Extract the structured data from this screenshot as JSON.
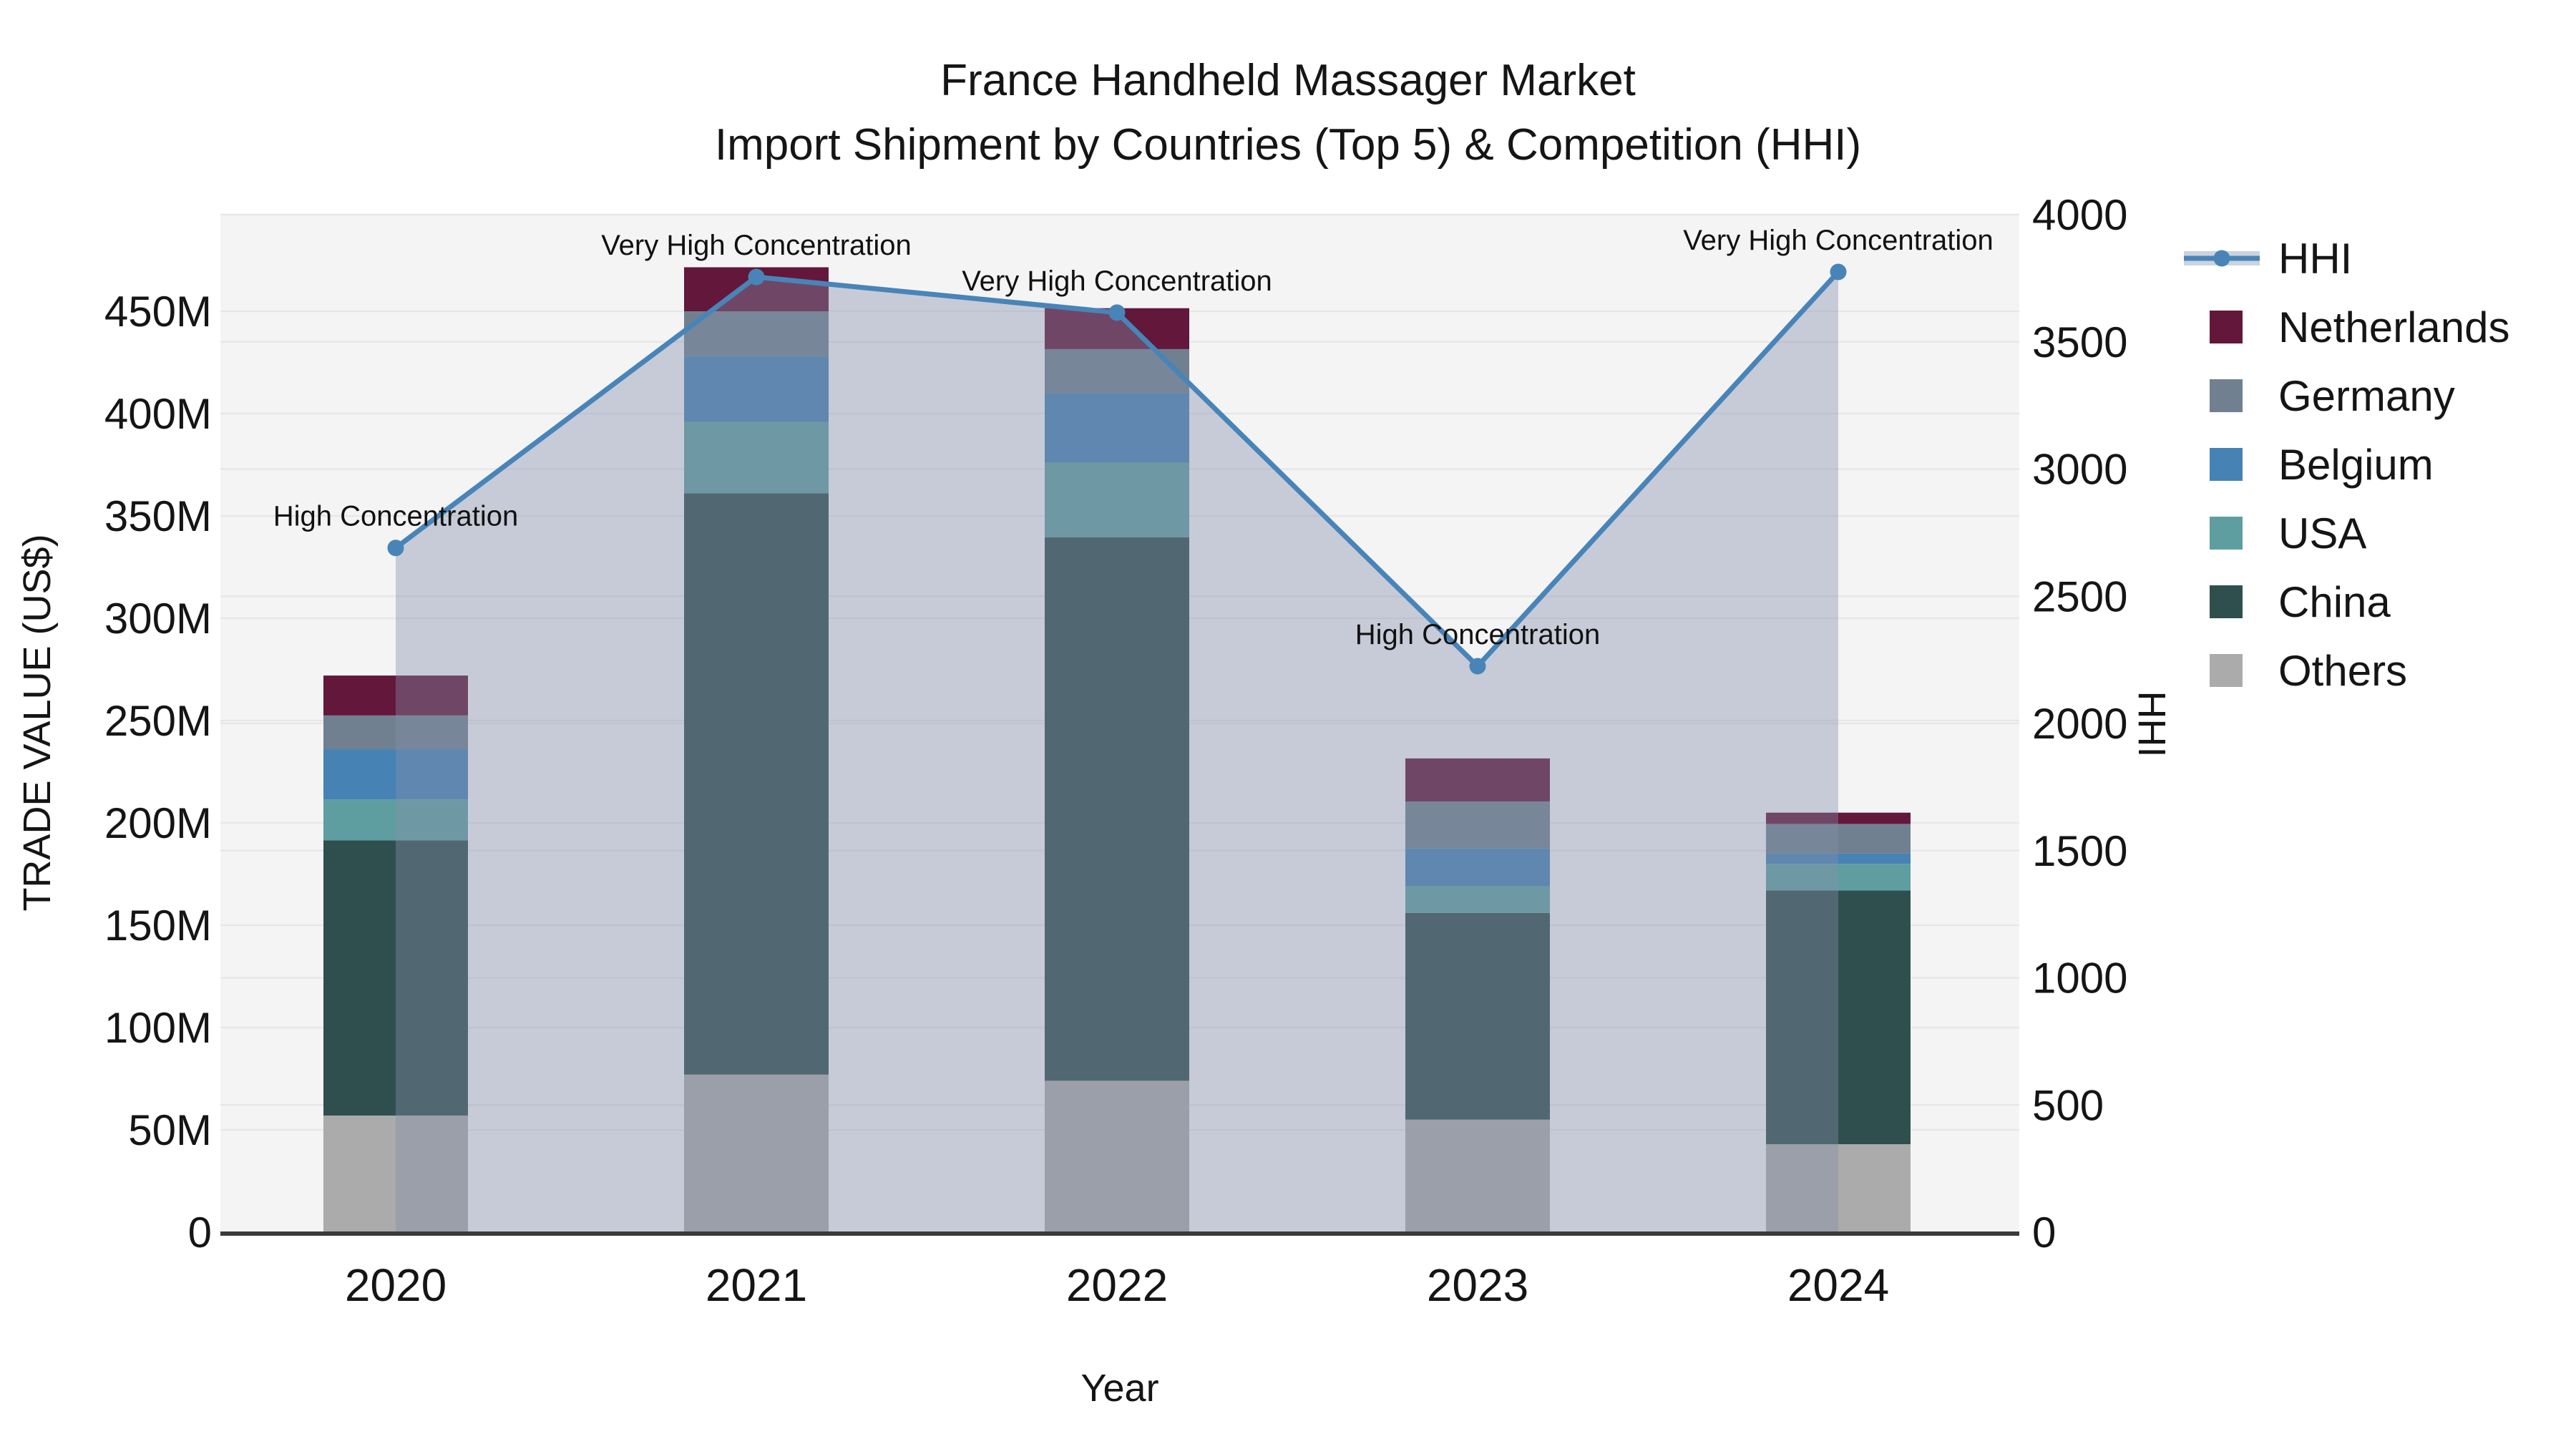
{
  "title": {
    "line1": "France Handheld Massager Market",
    "line2": "Import Shipment by Countries (Top 5) & Competition (HHI)"
  },
  "axes": {
    "left": {
      "title": "TRADE VALUE (US$)",
      "tick_values": [
        0,
        50,
        100,
        150,
        200,
        250,
        300,
        350,
        400,
        450
      ],
      "tick_labels": [
        "0",
        "50M",
        "100M",
        "150M",
        "200M",
        "250M",
        "300M",
        "350M",
        "400M",
        "450M"
      ]
    },
    "right": {
      "title": "HHI",
      "tick_values": [
        0,
        500,
        1000,
        1500,
        2000,
        2500,
        3000,
        3500,
        4000
      ],
      "tick_labels": [
        "0",
        "500",
        "1000",
        "1500",
        "2000",
        "2500",
        "3000",
        "3500",
        "4000"
      ]
    },
    "x": {
      "title": "Year",
      "categories": [
        "2020",
        "2021",
        "2022",
        "2023",
        "2024"
      ]
    }
  },
  "legend": {
    "items": [
      {
        "label": "HHI",
        "type": "line",
        "color": "#4884b8",
        "band": "#ccd3dd"
      },
      {
        "label": "Netherlands",
        "type": "swatch",
        "color": "#63173a"
      },
      {
        "label": "Germany",
        "type": "swatch",
        "color": "#708090"
      },
      {
        "label": "Belgium",
        "type": "swatch",
        "color": "#4682b4"
      },
      {
        "label": "USA",
        "type": "swatch",
        "color": "#5f9ea0"
      },
      {
        "label": "China",
        "type": "swatch",
        "color": "#2f4f4f"
      },
      {
        "label": "Others",
        "type": "swatch",
        "color": "#ababab"
      }
    ]
  },
  "colors": {
    "plot_bg": "#f4f4f5",
    "grid": "#e7e7e9",
    "spine": "#3a3a3a",
    "hhi_line": "#4884b8",
    "hhi_area_fill": "rgba(133,142,170,0.40)",
    "text": "#151515"
  },
  "chart_data": {
    "type": "stacked-bar+line",
    "unit_left": "million US$",
    "unit_right": "HHI index",
    "categories": [
      "2020",
      "2021",
      "2022",
      "2023",
      "2024"
    ],
    "stack_series_bottom_to_top": [
      {
        "name": "Others",
        "color": "#ababab",
        "values": [
          57,
          77,
          74,
          55,
          43
        ]
      },
      {
        "name": "China",
        "color": "#2f4f4f",
        "values": [
          134.5,
          284,
          265.5,
          101,
          124
        ]
      },
      {
        "name": "USA",
        "color": "#5f9ea0",
        "values": [
          20,
          35,
          36.5,
          13,
          13
        ]
      },
      {
        "name": "Belgium",
        "color": "#4682b4",
        "values": [
          24.5,
          32,
          34,
          18.5,
          5
        ]
      },
      {
        "name": "Germany",
        "color": "#708090",
        "values": [
          16.5,
          22,
          21.5,
          23,
          14.5
        ]
      },
      {
        "name": "Netherlands",
        "color": "#63173a",
        "values": [
          19.5,
          21.5,
          20,
          21,
          5.5
        ]
      }
    ],
    "bar_totals": [
      272,
      471.5,
      451.5,
      231.5,
      205
    ],
    "line_series": {
      "name": "HHI",
      "axis": "right",
      "color": "#4884b8",
      "values": [
        2690,
        3755,
        3615,
        2225,
        3775
      ]
    },
    "annotations": [
      {
        "category": "2020",
        "text": "High Concentration"
      },
      {
        "category": "2021",
        "text": "Very High Concentration"
      },
      {
        "category": "2022",
        "text": "Very High Concentration"
      },
      {
        "category": "2023",
        "text": "High Concentration"
      },
      {
        "category": "2024",
        "text": "Very High Concentration"
      }
    ],
    "ylim_left": [
      0,
      500
    ],
    "ylim_right": [
      0,
      4000
    ],
    "grid": "both-axes-horizontal",
    "legend_position": "right"
  }
}
